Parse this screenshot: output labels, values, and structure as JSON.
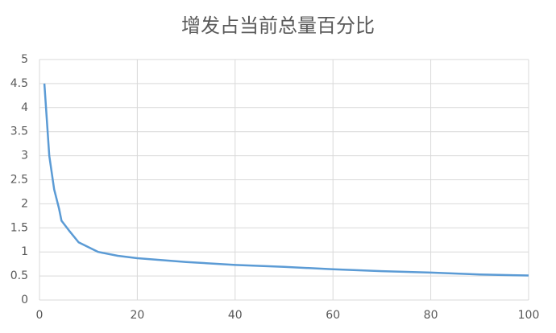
{
  "chart_data": {
    "type": "line",
    "title": "增发占当前总量百分比",
    "x": [
      1,
      2,
      3,
      4,
      4.5,
      6,
      8,
      12,
      16,
      20,
      30,
      40,
      50,
      60,
      70,
      80,
      90,
      100
    ],
    "values": [
      4.5,
      3.0,
      2.3,
      1.9,
      1.65,
      1.45,
      1.2,
      1.0,
      0.92,
      0.87,
      0.79,
      0.73,
      0.69,
      0.64,
      0.6,
      0.57,
      0.53,
      0.51
    ],
    "color": "#5b9bd5",
    "xlim": [
      0,
      100
    ],
    "xticks": [
      0,
      20,
      40,
      60,
      80,
      100
    ],
    "ylim": [
      0,
      5
    ],
    "yticks": [
      0,
      0.5,
      1,
      1.5,
      2,
      2.5,
      3,
      3.5,
      4,
      4.5,
      5
    ],
    "grid": true
  }
}
